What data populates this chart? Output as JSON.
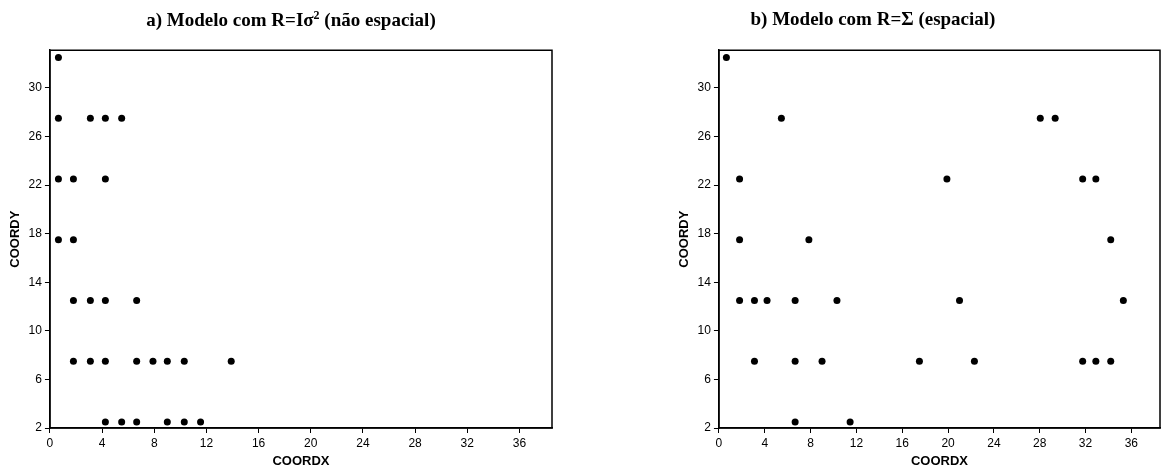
{
  "chart_data": [
    {
      "type": "scatter",
      "title": "a)  Modelo com R=Iσ$^{2}$ (não espacial)",
      "xlabel": "COORDX",
      "ylabel": "COORDY",
      "marker": "circle",
      "xlim": [
        0,
        38.5
      ],
      "ylim": [
        2,
        33.1
      ],
      "xticks": [
        0,
        4,
        8,
        12,
        16,
        20,
        24,
        28,
        32,
        36
      ],
      "yticks": [
        2,
        6,
        10,
        14,
        18,
        22,
        26,
        30
      ],
      "series": [
        {
          "color": "#000000",
          "x": [
            0.65,
            0.65,
            3.1,
            4.25,
            5.5,
            0.65,
            1.8,
            4.25,
            0.65,
            1.8,
            1.8,
            3.1,
            4.25,
            6.65,
            1.8,
            3.1,
            4.25,
            6.65,
            7.9,
            9.0,
            10.3,
            13.9,
            4.25,
            5.5,
            6.65,
            9.0,
            10.3,
            11.55
          ],
          "values": [
            32.5,
            27.5,
            27.5,
            27.5,
            27.5,
            22.5,
            22.5,
            22.5,
            17.5,
            17.5,
            12.5,
            12.5,
            12.5,
            12.5,
            7.5,
            7.5,
            7.5,
            7.5,
            7.5,
            7.5,
            7.5,
            7.5,
            2.5,
            2.5,
            2.5,
            2.5,
            2.5,
            2.5
          ]
        }
      ]
    },
    {
      "type": "scatter",
      "title": "b) Modelo com R=Σ (espacial)",
      "xlabel": "COORDX",
      "ylabel": "COORDY",
      "marker": "circle",
      "xlim": [
        0,
        38.5
      ],
      "ylim": [
        2,
        33.1
      ],
      "xticks": [
        0,
        4,
        8,
        12,
        16,
        20,
        24,
        28,
        32,
        36
      ],
      "yticks": [
        2,
        6,
        10,
        14,
        18,
        22,
        26,
        30
      ],
      "series": [
        {
          "color": "#000000",
          "x": [
            0.65,
            5.45,
            28.05,
            29.35,
            1.8,
            19.9,
            31.75,
            32.9,
            1.8,
            7.85,
            34.2,
            1.8,
            3.1,
            4.2,
            6.65,
            10.3,
            21.0,
            35.3,
            3.1,
            6.65,
            9.0,
            17.5,
            22.3,
            31.75,
            32.9,
            34.2,
            6.65,
            11.45
          ],
          "values": [
            32.5,
            27.5,
            27.5,
            27.5,
            22.5,
            22.5,
            22.5,
            22.5,
            17.5,
            17.5,
            17.5,
            12.5,
            12.5,
            12.5,
            12.5,
            12.5,
            12.5,
            12.5,
            7.5,
            7.5,
            7.5,
            7.5,
            7.5,
            7.5,
            7.5,
            7.5,
            2.5,
            2.5
          ]
        }
      ]
    }
  ]
}
